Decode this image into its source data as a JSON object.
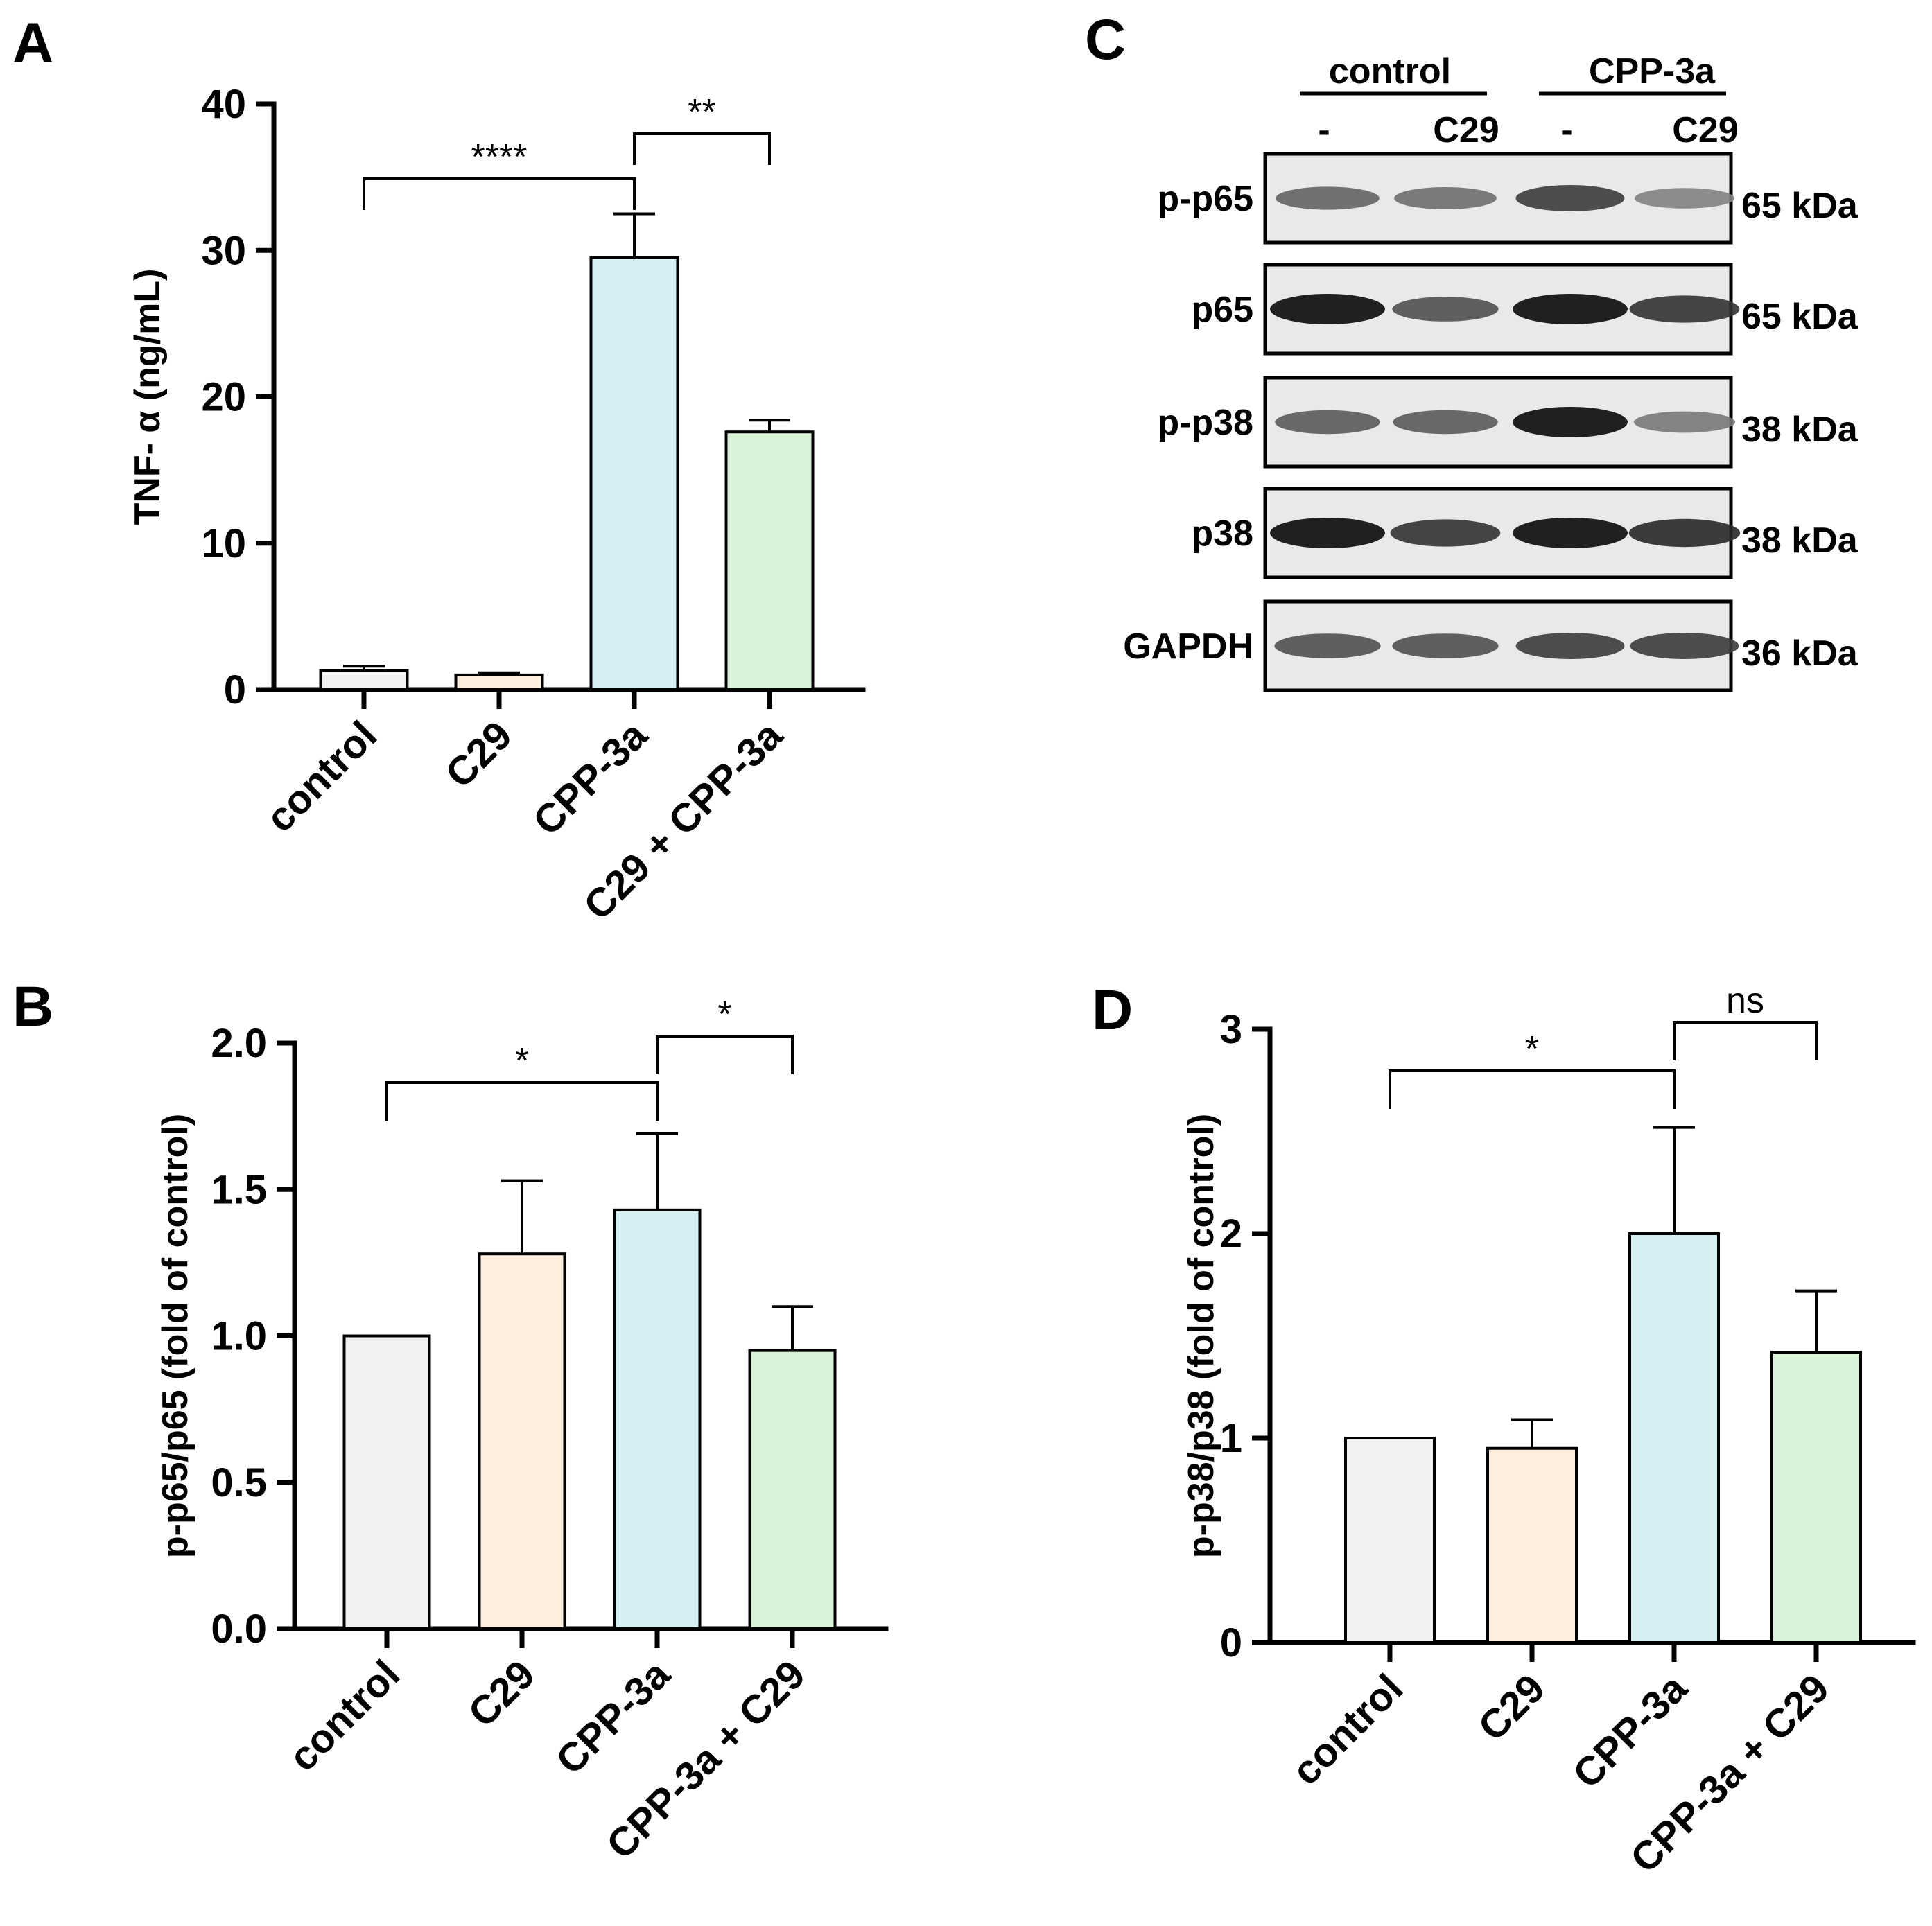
{
  "panels": {
    "A": {
      "label": "A",
      "ylabel": "TNF- α (ng/mL)",
      "sig": [
        {
          "text": "****",
          "from": 0,
          "to": 2
        },
        {
          "text": "**",
          "from": 2,
          "to": 3
        }
      ]
    },
    "B": {
      "label": "B",
      "ylabel": "p-p65/p65 (fold of control)",
      "sig": [
        {
          "text": "*",
          "from": 0,
          "to": 2
        },
        {
          "text": "*",
          "from": 2,
          "to": 3
        }
      ]
    },
    "C": {
      "label": "C",
      "group_labels": [
        "control",
        "CPP-3a"
      ],
      "lane_labels": [
        "-",
        "C29",
        "-",
        "C29"
      ],
      "rows": [
        {
          "name": "p-p65",
          "kda": "65 kDa",
          "intensity": [
            0.55,
            0.5,
            0.75,
            0.4
          ]
        },
        {
          "name": "p65",
          "kda": "65 kDa",
          "intensity": [
            1.0,
            0.65,
            1.0,
            0.8
          ]
        },
        {
          "name": "p-p38",
          "kda": "38 kDa",
          "intensity": [
            0.6,
            0.6,
            1.0,
            0.45
          ]
        },
        {
          "name": "p38",
          "kda": "38 kDa",
          "intensity": [
            1.0,
            0.8,
            1.0,
            0.85
          ]
        },
        {
          "name": "GAPDH",
          "kda": "36 kDa",
          "intensity": [
            0.65,
            0.65,
            0.75,
            0.75
          ]
        }
      ]
    },
    "D": {
      "label": "D",
      "ylabel": "p-p38/p38 (fold of control)",
      "sig": [
        {
          "text": "*",
          "from": 0,
          "to": 2
        },
        {
          "text": "ns",
          "from": 2,
          "to": 3
        }
      ]
    }
  },
  "chart_data": [
    {
      "panel": "A",
      "type": "bar",
      "categories": [
        "control",
        "C29",
        "CPP-3a",
        "C29 + CPP-3a"
      ],
      "values": [
        1.3,
        1.0,
        29.5,
        17.6
      ],
      "errors": [
        0.3,
        0.15,
        3.0,
        0.8
      ],
      "colors": [
        "#f2f2f2",
        "#fdeee0",
        "#d5eff2",
        "#d9f1d6"
      ],
      "ylabel": "TNF- α (ng/mL)",
      "ylim": [
        0,
        40
      ],
      "yticks": [
        "0",
        "10",
        "20",
        "30",
        "40"
      ],
      "ytick_values": [
        0,
        10,
        20,
        30,
        40
      ]
    },
    {
      "panel": "B",
      "type": "bar",
      "categories": [
        "control",
        "C29",
        "CPP-3a",
        "CPP-3a + C29"
      ],
      "values": [
        1.0,
        1.28,
        1.43,
        0.95
      ],
      "errors": [
        0.0,
        0.25,
        0.26,
        0.15
      ],
      "colors": [
        "#f2f2f2",
        "#fdeee0",
        "#d5eff2",
        "#d9f1d6"
      ],
      "ylabel": "p-p65/p65 (fold of control)",
      "ylim": [
        0,
        2.0
      ],
      "yticks": [
        "0.0",
        "0.5",
        "1.0",
        "1.5",
        "2.0"
      ],
      "ytick_values": [
        0,
        0.5,
        1.0,
        1.5,
        2.0
      ]
    },
    {
      "panel": "D",
      "type": "bar",
      "categories": [
        "control",
        "C29",
        "CPP-3a",
        "CPP-3a + C29"
      ],
      "values": [
        1.0,
        0.95,
        2.0,
        1.42
      ],
      "errors": [
        0.0,
        0.14,
        0.52,
        0.3
      ],
      "colors": [
        "#f2f2f2",
        "#fdeee0",
        "#d5eff2",
        "#d9f1d6"
      ],
      "ylabel": "p-p38/p38 (fold of control)",
      "ylim": [
        0,
        3
      ],
      "yticks": [
        "0",
        "1",
        "2",
        "3"
      ],
      "ytick_values": [
        0,
        1,
        2,
        3
      ]
    }
  ]
}
